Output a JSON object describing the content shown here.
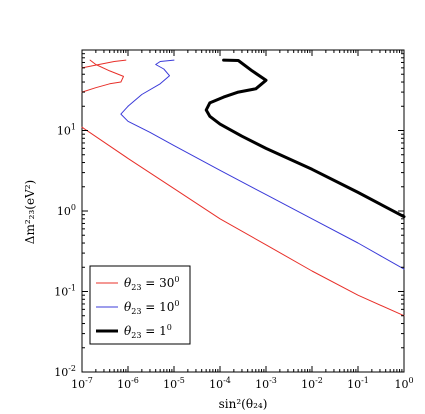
{
  "chart_data": {
    "type": "line",
    "xscale": "log",
    "yscale": "log",
    "xlim": [
      1e-07,
      1
    ],
    "ylim": [
      0.01,
      100
    ],
    "xlabel": "sin²(θ₂₄)",
    "ylabel": "Δm²₂₃(eV²)",
    "xticks": [
      {
        "value": 1e-07,
        "base": "10",
        "exp": "-7"
      },
      {
        "value": 1e-06,
        "base": "10",
        "exp": "-6"
      },
      {
        "value": 1e-05,
        "base": "10",
        "exp": "-5"
      },
      {
        "value": 0.0001,
        "base": "10",
        "exp": "-4"
      },
      {
        "value": 0.001,
        "base": "10",
        "exp": "-3"
      },
      {
        "value": 0.01,
        "base": "10",
        "exp": "-2"
      },
      {
        "value": 0.1,
        "base": "10",
        "exp": "-1"
      },
      {
        "value": 1,
        "base": "10",
        "exp": "0"
      }
    ],
    "yticks": [
      {
        "value": 0.01,
        "base": "10",
        "exp": "-2"
      },
      {
        "value": 0.1,
        "base": "10",
        "exp": "-1"
      },
      {
        "value": 1,
        "base": "10",
        "exp": "0"
      },
      {
        "value": 10,
        "base": "10",
        "exp": "1"
      }
    ],
    "legend_position": "bottom-left",
    "series": [
      {
        "name": "θ₂₃ = 30⁰",
        "label_main": "θ",
        "label_sub": "23",
        "label_eq": " = 30",
        "label_sup": "0",
        "color": "#e8302a",
        "width": 1,
        "curves": [
          [
            [
              1e-07,
              60
            ],
            [
              2e-07,
              65
            ],
            [
              5e-07,
              72
            ],
            [
              9e-07,
              75
            ]
          ],
          [
            [
              1e-07,
              30
            ],
            [
              2e-07,
              34
            ],
            [
              4e-07,
              38
            ],
            [
              7e-07,
              40
            ],
            [
              8e-07,
              47
            ],
            [
              4e-07,
              55
            ],
            [
              2e-07,
              66
            ],
            [
              1.5e-07,
              75
            ]
          ],
          [
            [
              1e-07,
              11
            ],
            [
              1e-06,
              4.5
            ],
            [
              1e-05,
              1.9
            ],
            [
              0.0001,
              0.8
            ],
            [
              0.001,
              0.38
            ],
            [
              0.01,
              0.18
            ],
            [
              0.1,
              0.09
            ],
            [
              1,
              0.05
            ]
          ]
        ]
      },
      {
        "name": "θ₂₃ = 10⁰",
        "label_main": "θ",
        "label_sub": "23",
        "label_eq": " = 10",
        "label_sup": "0",
        "color": "#3b3bd9",
        "width": 1,
        "curves": [
          [
            [
              1e-06,
              20
            ],
            [
              2e-06,
              28
            ],
            [
              5e-06,
              38
            ],
            [
              8e-06,
              48
            ],
            [
              6e-06,
              58
            ],
            [
              4e-06,
              66
            ],
            [
              5e-06,
              72
            ],
            [
              1e-05,
              75
            ]
          ],
          [
            [
              1e-06,
              20
            ],
            [
              7e-07,
              16
            ],
            [
              1e-06,
              13
            ],
            [
              3e-06,
              9.5
            ],
            [
              1e-05,
              6.5
            ],
            [
              0.0001,
              3.2
            ],
            [
              0.001,
              1.6
            ],
            [
              0.01,
              0.8
            ],
            [
              0.1,
              0.4
            ],
            [
              1,
              0.19
            ]
          ]
        ]
      },
      {
        "name": "θ₂₃ = 1⁰",
        "label_main": "θ",
        "label_sub": "23",
        "label_eq": " = 1",
        "label_sup": "0",
        "color": "#000000",
        "width": 3,
        "curves": [
          [
            [
              0.00012,
              75
            ],
            [
              0.00025,
              74
            ],
            [
              0.0005,
              55
            ],
            [
              0.001,
              42
            ],
            [
              0.0006,
              33
            ],
            [
              0.00025,
              30
            ],
            [
              0.00012,
              26
            ],
            [
              6e-05,
              22
            ],
            [
              5e-05,
              18
            ],
            [
              6e-05,
              15
            ],
            [
              0.0001,
              12
            ],
            [
              0.0003,
              8.5
            ],
            [
              0.001,
              6
            ],
            [
              0.01,
              3.3
            ],
            [
              0.1,
              1.7
            ],
            [
              1,
              0.85
            ]
          ]
        ]
      }
    ]
  }
}
